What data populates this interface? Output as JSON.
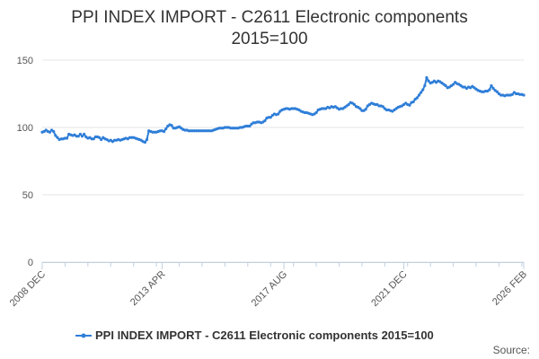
{
  "chart_data": {
    "type": "line",
    "title": "PPI INDEX IMPORT - C2611 Electronic components",
    "subtitle": "2015=100",
    "xlabel": "",
    "ylabel": "",
    "ylim": [
      0,
      150
    ],
    "yticks": [
      "0",
      "50",
      "100",
      "150"
    ],
    "xtick_labels": [
      "2008 DEC",
      "2013 APR",
      "2017 AUG",
      "2021 DEC",
      "2026 FEB"
    ],
    "grid": true,
    "legend": "bottom",
    "colors": {
      "series": "#2f7ed8",
      "grid": "#e6e6e6",
      "axis": "#c0d0e0"
    },
    "source": "Source:",
    "series": [
      {
        "name": "PPI INDEX IMPORT - C2611 Electronic components 2015=100",
        "x_start": "2008-12",
        "frequency": "monthly",
        "values": [
          96.5,
          97,
          98,
          97,
          96.5,
          98,
          97,
          94,
          92.5,
          91,
          91.5,
          91.5,
          92,
          92,
          95,
          94.5,
          94,
          94.5,
          93.5,
          93.5,
          95,
          93.5,
          95,
          93,
          92,
          92.5,
          91.5,
          91.5,
          93,
          93,
          92.5,
          91,
          92.5,
          91.5,
          91,
          90,
          90.5,
          89.5,
          90.5,
          90.5,
          91,
          90.5,
          91,
          91.5,
          92,
          91.5,
          92.5,
          92.5,
          92.5,
          92,
          91.5,
          91,
          90.5,
          89.5,
          89,
          91,
          97.5,
          97,
          96.5,
          96.5,
          96.5,
          97,
          97.5,
          97.5,
          97,
          99,
          101,
          102,
          101.5,
          99.5,
          99.5,
          100,
          100.5,
          99.5,
          98.5,
          98,
          98,
          97.5,
          97.5,
          97.5,
          97.5,
          97.5,
          97.5,
          97.5,
          97.5,
          97.5,
          97.5,
          97.5,
          97.5,
          97.5,
          98,
          98.5,
          99,
          99.5,
          99.5,
          99.5,
          100,
          100,
          100,
          99.5,
          99.5,
          99.5,
          99.5,
          99.5,
          100,
          100,
          100.5,
          101,
          101,
          101,
          102.5,
          103.5,
          103.5,
          104,
          104,
          103.5,
          104,
          105,
          107,
          107.5,
          107.5,
          109,
          110,
          109.5,
          110,
          112,
          113,
          113.5,
          114,
          114,
          113.5,
          114,
          114,
          114,
          113.5,
          113,
          112,
          111.5,
          111,
          111,
          110.5,
          110,
          109.5,
          110,
          111,
          113,
          113.5,
          114,
          114,
          114,
          115,
          114.5,
          115.5,
          115,
          115.5,
          114.5,
          113.5,
          114,
          114,
          115,
          116,
          117,
          118.5,
          118,
          117,
          115.5,
          115,
          114,
          112.5,
          112.5,
          113.5,
          116,
          117,
          118,
          117.5,
          117,
          117,
          116,
          116,
          115.5,
          114,
          113,
          113,
          112.5,
          112,
          113,
          114,
          115,
          115.5,
          116,
          117,
          118,
          117,
          116.5,
          118.5,
          119,
          121,
          122,
          124,
          126,
          128,
          131,
          137,
          134.5,
          133,
          133.5,
          134.5,
          133.5,
          134.5,
          134,
          133,
          132,
          131,
          129.5,
          130,
          131,
          132,
          133.5,
          132.5,
          132,
          131,
          130,
          130,
          129,
          130,
          129.5,
          130.5,
          129.5,
          128.5,
          127.5,
          127,
          126.5,
          126.5,
          127,
          127,
          128,
          131,
          129,
          127.5,
          126.5,
          125,
          124,
          124,
          123.5,
          124,
          124,
          124,
          124.5,
          126,
          125,
          125,
          124.5,
          124.5,
          124
        ]
      }
    ]
  }
}
